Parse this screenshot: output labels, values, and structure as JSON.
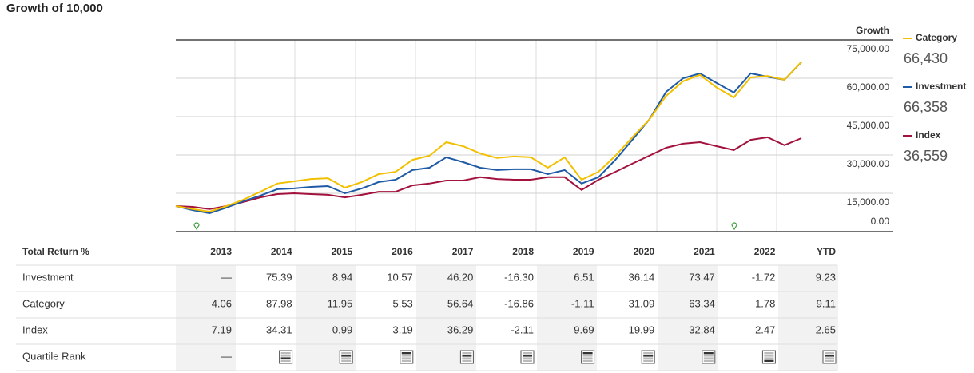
{
  "chart_data": {
    "type": "line",
    "title": "Growth of 10,000",
    "y_axis_title": "Growth",
    "ylim": [
      0,
      75000
    ],
    "yticks": [
      {
        "value": 0,
        "label": "0.00"
      },
      {
        "value": 15000,
        "label": "15,000.00"
      },
      {
        "value": 30000,
        "label": "30,000.00"
      },
      {
        "value": 45000,
        "label": "45,000.00"
      },
      {
        "value": 60000,
        "label": "60,000.00"
      },
      {
        "value": 75000,
        "label": "75,000.00"
      }
    ],
    "grid": true,
    "series": [
      {
        "name": "Category",
        "color": "#f2c000",
        "legend_value": "66,430",
        "values": [
          10000,
          8800,
          7800,
          10000,
          12500,
          15600,
          18800,
          19700,
          20600,
          20900,
          17200,
          19400,
          22500,
          23400,
          28100,
          29700,
          35000,
          33400,
          30600,
          28800,
          29400,
          29100,
          25000,
          29100,
          20300,
          23400,
          29700,
          36900,
          43800,
          53100,
          58800,
          61300,
          56300,
          52500,
          60300,
          60900,
          59400,
          66430
        ]
      },
      {
        "name": "Investment",
        "color": "#1f5aa6",
        "legend_value": "66,358",
        "values": [
          10000,
          8400,
          7200,
          9400,
          11900,
          14100,
          16600,
          16900,
          17500,
          17800,
          15000,
          16900,
          19400,
          20300,
          24100,
          25000,
          29100,
          27200,
          25000,
          24100,
          24400,
          24400,
          22500,
          24100,
          18800,
          21300,
          28100,
          35900,
          43800,
          54700,
          60000,
          61900,
          58100,
          54400,
          61900,
          60600,
          59400,
          66358
        ]
      },
      {
        "name": "Index",
        "color": "#a3123d",
        "legend_value": "36,559",
        "values": [
          10000,
          9700,
          8800,
          10000,
          11600,
          13400,
          14700,
          15000,
          14700,
          14400,
          13400,
          14400,
          15600,
          15600,
          18100,
          18800,
          20000,
          20000,
          21300,
          20600,
          20300,
          20300,
          21300,
          21300,
          16300,
          20300,
          23400,
          26600,
          29700,
          32800,
          34400,
          35000,
          33400,
          31900,
          35900,
          36900,
          33800,
          36559
        ]
      }
    ]
  },
  "table": {
    "header": "Total Return %",
    "columns": [
      "2013",
      "2014",
      "2015",
      "2016",
      "2017",
      "2018",
      "2019",
      "2020",
      "2021",
      "2022",
      "YTD"
    ],
    "rows": [
      {
        "label": "Investment",
        "values": [
          "—",
          "75.39",
          "8.94",
          "10.57",
          "46.20",
          "-16.30",
          "6.51",
          "36.14",
          "73.47",
          "-1.72",
          "9.23"
        ]
      },
      {
        "label": "Category",
        "values": [
          "4.06",
          "87.98",
          "11.95",
          "5.53",
          "56.64",
          "-16.86",
          "-1.11",
          "31.09",
          "63.34",
          "1.78",
          "9.11"
        ]
      },
      {
        "label": "Index",
        "values": [
          "7.19",
          "34.31",
          "0.99",
          "3.19",
          "36.29",
          "-2.11",
          "9.69",
          "19.99",
          "32.84",
          "2.47",
          "2.65"
        ]
      }
    ],
    "quartile_label": "Quartile Rank",
    "quartile_rank": [
      "—",
      3,
      2,
      1,
      2,
      2,
      1,
      2,
      1,
      4,
      2
    ]
  }
}
